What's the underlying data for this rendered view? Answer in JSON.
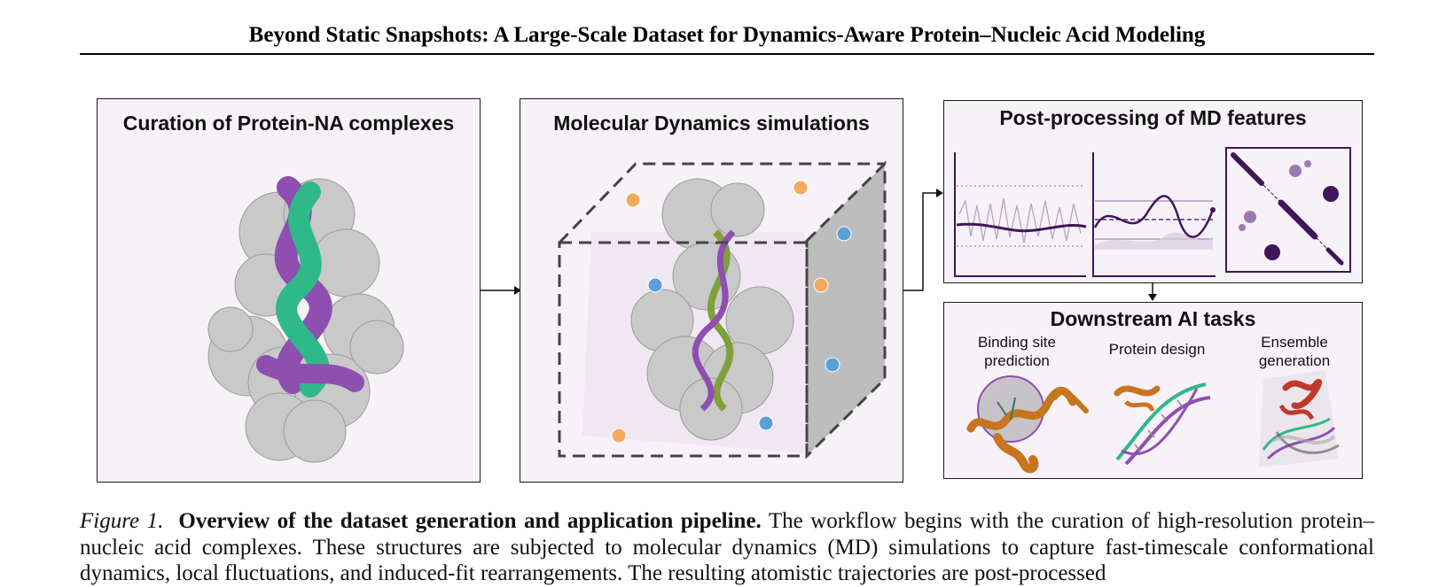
{
  "header": {
    "title": "Beyond Static Snapshots: A Large-Scale Dataset for Dynamics-Aware Protein–Nucleic Acid Modeling"
  },
  "figure": {
    "panels": {
      "curation": {
        "title": "Curation of Protein-NA complexes"
      },
      "md": {
        "title": "Molecular Dynamics simulations"
      },
      "postprocessing": {
        "title": "Post-processing of MD features"
      },
      "downstream": {
        "title": "Downstream AI tasks",
        "tasks": [
          {
            "line1": "Binding site",
            "line2": "prediction"
          },
          {
            "line1": "Protein design",
            "line2": ""
          },
          {
            "line1": "Ensemble",
            "line2": "generation"
          }
        ]
      }
    },
    "colors": {
      "panel_bg": "#f7f2f8",
      "protein_gray": "#c9c9c9",
      "na_purple": "#8e4fb0",
      "na_green": "#2fb889",
      "ion_orange": "#f2aa5e",
      "ion_blue": "#5b9ed8",
      "plot_purple": "#3f1657",
      "design_orange": "#c9741f",
      "ensemble_red": "#c0392b"
    },
    "icons": [
      "protein-complex-image",
      "simulation-box-image",
      "timeseries-plot-icon",
      "oscillation-plot-icon",
      "correlation-matrix-icon",
      "binding-site-image",
      "protein-design-image",
      "ensemble-image"
    ]
  },
  "caption": {
    "label": "Figure 1.",
    "bold": "Overview of the dataset generation and application pipeline.",
    "text": " The workflow begins with the curation of high-resolution protein–nucleic acid complexes. These structures are subjected to molecular dynamics (MD) simulations to capture fast-timescale conformational dynamics, local fluctuations, and induced-fit rearrangements. The resulting atomistic trajectories are post-processed"
  }
}
